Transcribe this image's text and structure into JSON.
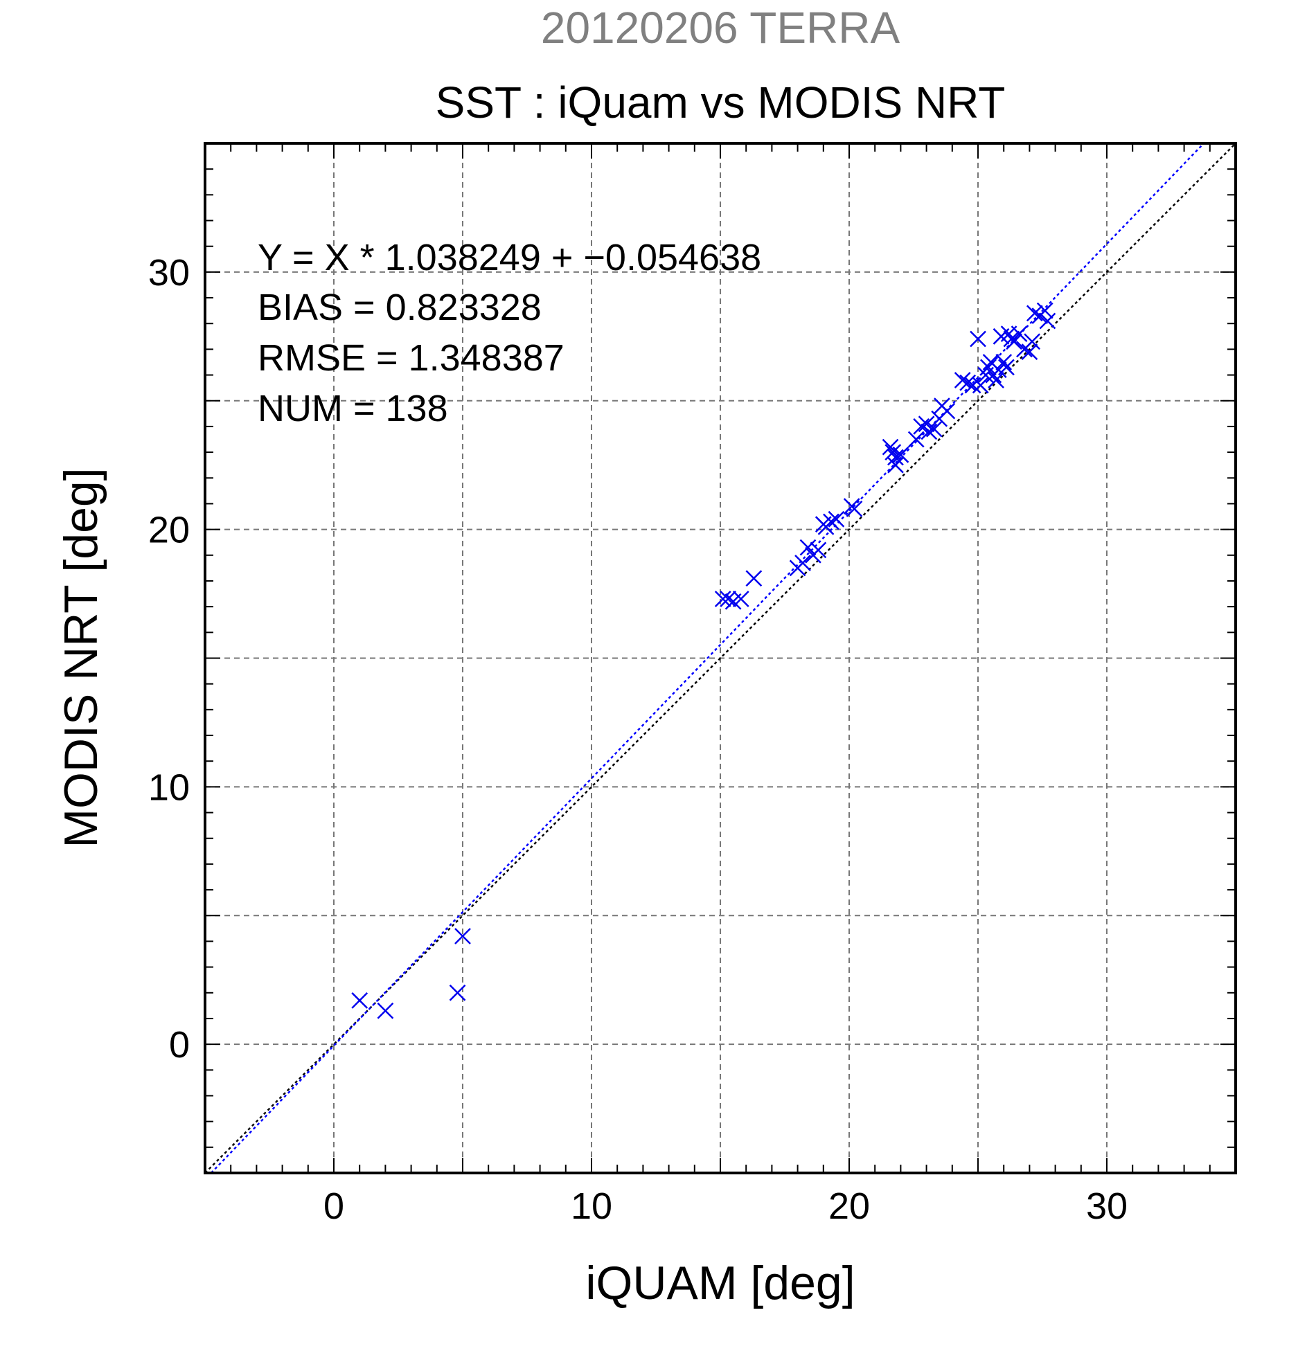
{
  "header": {
    "date_title": "20120206 TERRA",
    "title": "SST : iQuam vs MODIS NRT"
  },
  "stats": {
    "regression": "Y = X * 1.038249 + −0.054638",
    "bias": "BIAS = 0.823328",
    "rmse": "RMSE = 1.348387",
    "num": "NUM = 138"
  },
  "colors": {
    "points": "#0000ee",
    "fit_line": "#0000ff",
    "one_to_one": "#000000",
    "grid": "#777777",
    "date_title": "#808080"
  },
  "chart_data": {
    "type": "scatter",
    "xlabel": "iQUAM [deg]",
    "ylabel": "MODIS NRT [deg]",
    "xlim": [
      -5,
      35
    ],
    "ylim": [
      -5,
      35
    ],
    "x_ticks": [
      0,
      10,
      20,
      30
    ],
    "y_ticks": [
      0,
      10,
      20,
      30
    ],
    "x_tick_labels": [
      "0",
      "10",
      "20",
      "30"
    ],
    "y_tick_labels": [
      "0",
      "10",
      "20",
      "30"
    ],
    "grid": true,
    "marker": "x",
    "fit": {
      "slope": 1.038249,
      "intercept": -0.054638
    },
    "reference_line": {
      "slope": 1,
      "intercept": 0
    },
    "points": [
      [
        1.0,
        1.7
      ],
      [
        2.0,
        1.3
      ],
      [
        4.8,
        2.0
      ],
      [
        5.0,
        4.2
      ],
      [
        15.1,
        17.3
      ],
      [
        15.3,
        17.3
      ],
      [
        15.5,
        17.2
      ],
      [
        15.8,
        17.3
      ],
      [
        16.3,
        18.1
      ],
      [
        18.0,
        18.5
      ],
      [
        18.2,
        18.7
      ],
      [
        18.4,
        19.3
      ],
      [
        18.6,
        19.0
      ],
      [
        18.8,
        19.2
      ],
      [
        19.0,
        20.2
      ],
      [
        19.1,
        20.1
      ],
      [
        19.3,
        20.3
      ],
      [
        19.5,
        20.4
      ],
      [
        20.1,
        20.9
      ],
      [
        20.2,
        20.8
      ],
      [
        21.6,
        23.2
      ],
      [
        21.7,
        23.0
      ],
      [
        21.8,
        22.8
      ],
      [
        21.8,
        22.5
      ],
      [
        22.0,
        22.9
      ],
      [
        22.6,
        23.5
      ],
      [
        22.8,
        24.0
      ],
      [
        23.0,
        24.1
      ],
      [
        23.1,
        23.8
      ],
      [
        23.3,
        23.9
      ],
      [
        23.5,
        24.3
      ],
      [
        23.6,
        24.8
      ],
      [
        23.8,
        24.6
      ],
      [
        24.4,
        25.8
      ],
      [
        24.6,
        25.7
      ],
      [
        24.8,
        25.6
      ],
      [
        25.0,
        27.4
      ],
      [
        25.1,
        25.6
      ],
      [
        25.3,
        26.0
      ],
      [
        25.4,
        26.3
      ],
      [
        25.5,
        26.5
      ],
      [
        25.6,
        26.0
      ],
      [
        25.7,
        25.8
      ],
      [
        25.8,
        26.2
      ],
      [
        25.9,
        27.5
      ],
      [
        26.0,
        26.5
      ],
      [
        26.1,
        26.3
      ],
      [
        26.2,
        27.6
      ],
      [
        26.3,
        27.4
      ],
      [
        26.4,
        27.3
      ],
      [
        26.6,
        27.6
      ],
      [
        26.8,
        27.0
      ],
      [
        27.0,
        26.9
      ],
      [
        27.1,
        27.3
      ],
      [
        27.2,
        28.4
      ],
      [
        27.4,
        28.3
      ],
      [
        27.6,
        28.5
      ],
      [
        27.7,
        28.1
      ]
    ]
  }
}
